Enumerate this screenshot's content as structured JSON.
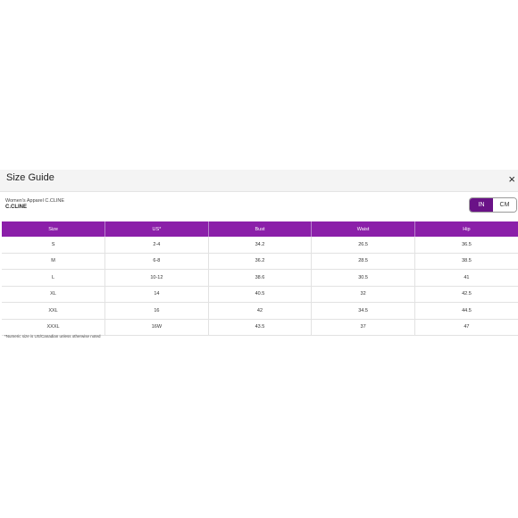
{
  "modal": {
    "title": "Size Guide",
    "close_label": "×",
    "subtitle": "Women's Apparel C.CLINE",
    "brand": "C.CLINE",
    "toggle": {
      "in_label": "IN",
      "cm_label": "CM",
      "selected": "IN"
    },
    "table": {
      "headers": [
        "Size",
        "US*",
        "Bust",
        "Waist",
        "Hip"
      ],
      "rows": [
        [
          "S",
          "2-4",
          "34.2",
          "26.5",
          "36.5"
        ],
        [
          "M",
          "6-8",
          "36.2",
          "28.5",
          "38.5"
        ],
        [
          "L",
          "10-12",
          "38.6",
          "30.5",
          "41"
        ],
        [
          "XL",
          "14",
          "40.5",
          "32",
          "42.5"
        ],
        [
          "XXL",
          "16",
          "42",
          "34.5",
          "44.5"
        ],
        [
          "XXXL",
          "16W",
          "43.5",
          "37",
          "47"
        ]
      ]
    },
    "footnote": "*Numeric size is US/Canadian unless otherwise noted",
    "colors": {
      "accent": "#8b1fa9",
      "toggle_active": "#6a1287"
    }
  }
}
